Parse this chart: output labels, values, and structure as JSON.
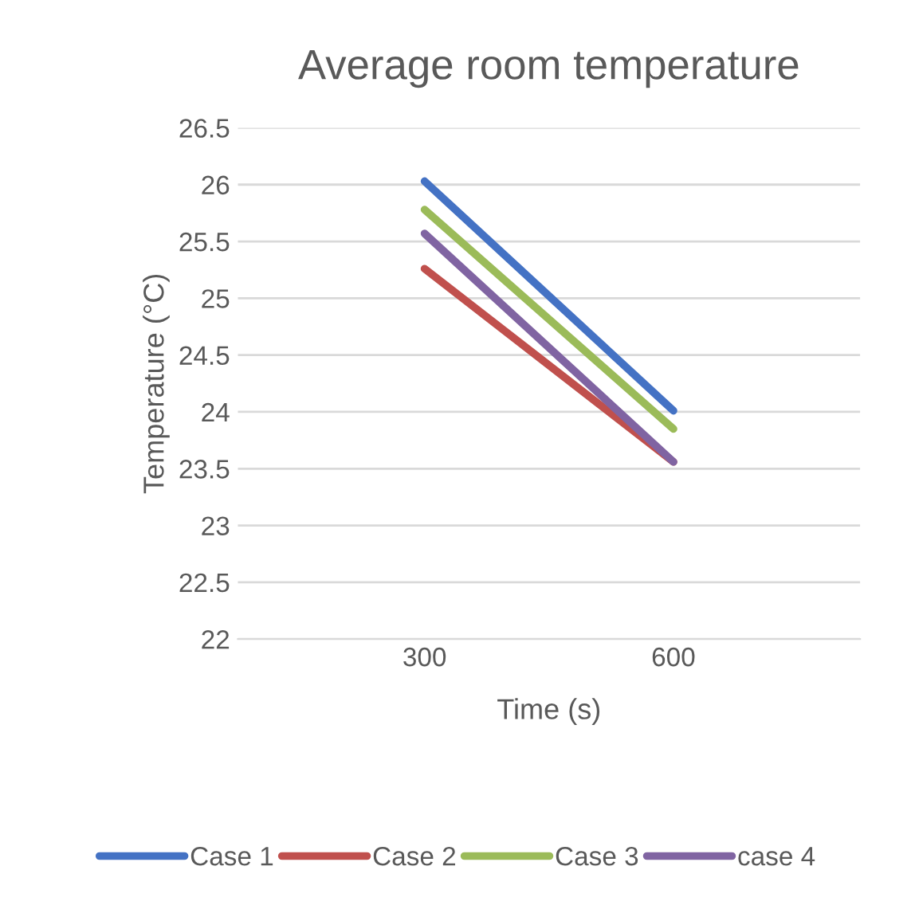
{
  "chart_data": {
    "type": "line",
    "title": "Average room temperature",
    "xlabel": "Time (s)",
    "ylabel": "Temperature (°C)",
    "categories": [
      "300",
      "600"
    ],
    "series": [
      {
        "name": "Case 1",
        "color": "#4472c4",
        "values": [
          26.03,
          24.01
        ]
      },
      {
        "name": "Case 2",
        "color": "#c0504d",
        "values": [
          25.26,
          23.56
        ]
      },
      {
        "name": "Case 3",
        "color": "#9bbb59",
        "values": [
          25.78,
          23.85
        ]
      },
      {
        "name": "case 4",
        "color": "#8064a2",
        "values": [
          25.57,
          23.56
        ]
      }
    ],
    "ylim": [
      22,
      26.5
    ],
    "yticks": [
      22,
      22.5,
      23,
      23.5,
      24,
      24.5,
      25,
      25.5,
      26,
      26.5
    ],
    "grid": "y",
    "legend": "bottom",
    "marker": "none",
    "line_style": "solid"
  }
}
